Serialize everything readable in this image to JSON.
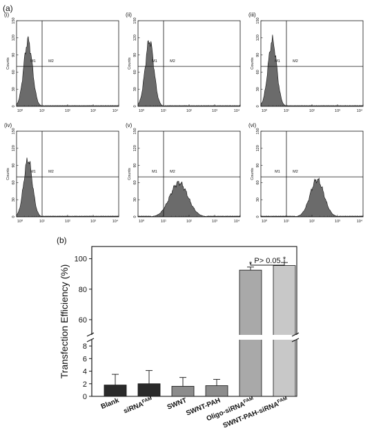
{
  "figure": {
    "label_a": "(a)",
    "label_b": "(b)"
  },
  "colors": {
    "histogram_fill": "#6b6b6b",
    "bar_dark": "#2a2a2a",
    "bar_mid": "#8c8c8c",
    "bar_oligo": "#a9a9a9",
    "bar_pah": "#c8c8c8"
  },
  "chart_data": [
    {
      "type": "histogram",
      "panels": [
        {
          "tag": "(i)",
          "peak_log10": 0.45,
          "width": 0.17,
          "peak_count": 115
        },
        {
          "tag": "(ii)",
          "peak_log10": 0.45,
          "width": 0.17,
          "peak_count": 115
        },
        {
          "tag": "(iii)",
          "peak_log10": 0.45,
          "width": 0.17,
          "peak_count": 115
        },
        {
          "tag": "(iv)",
          "peak_log10": 0.45,
          "width": 0.17,
          "peak_count": 100
        },
        {
          "tag": "(v)",
          "peak_log10": 1.6,
          "width": 0.35,
          "peak_count": 60
        },
        {
          "tag": "(vi)",
          "peak_log10": 2.2,
          "width": 0.27,
          "peak_count": 65
        }
      ],
      "ylabel": "Counts",
      "ylim": [
        0,
        150
      ],
      "yticks": [
        "0",
        "30",
        "60",
        "90",
        "120",
        "150"
      ],
      "xscale": "log",
      "xticks": [
        "10⁰",
        "10¹",
        "10²",
        "10³",
        "10⁴"
      ],
      "gate_x_log10": 1,
      "gate_y_count": 70,
      "marker_left": "M1",
      "marker_right": "M2"
    },
    {
      "type": "bar",
      "categories": [
        "Blank",
        "siRNA",
        "SWNT",
        "SWNT-PAH",
        "Oligo-siRNA",
        "SWNT-PAH-siRNA"
      ],
      "category_superscripts": [
        "",
        "FAM",
        "",
        "",
        "FAM",
        "FAM"
      ],
      "values": [
        1.8,
        2.0,
        1.6,
        1.7,
        92.5,
        95.5
      ],
      "errors": [
        1.7,
        2.1,
        1.4,
        1.0,
        2.0,
        2.0
      ],
      "stars": [
        "",
        "",
        "",
        "",
        "*",
        "*"
      ],
      "ylabel": "Transfection Efficiency (%)",
      "ylim_lower": [
        0,
        9
      ],
      "ylim_upper": [
        50,
        108
      ],
      "yticks_lower": [
        "0",
        "2",
        "4",
        "6",
        "8"
      ],
      "yticks_upper": [
        "60",
        "80",
        "100"
      ],
      "axis_break": true,
      "annotation": "P> 0.05"
    }
  ]
}
